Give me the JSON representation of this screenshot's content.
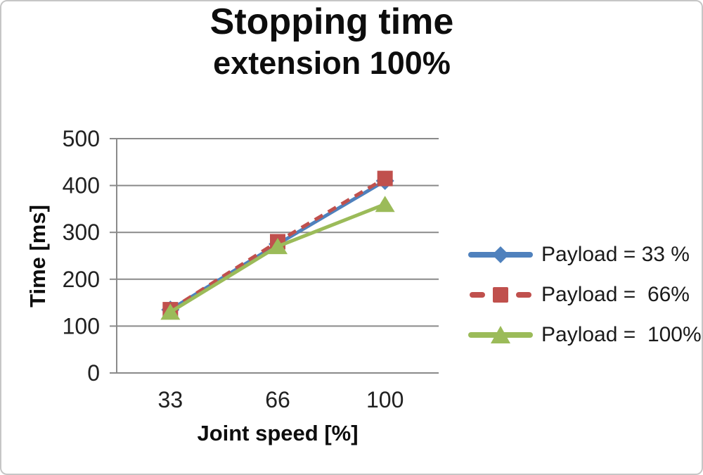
{
  "title": {
    "line1": "Stopping time",
    "line2": "extension 100%"
  },
  "chart_data": {
    "type": "line",
    "categories": [
      "33",
      "66",
      "100"
    ],
    "series": [
      {
        "name": "Payload = 33 %",
        "values": [
          135,
          275,
          410
        ],
        "color": "#4F81BD",
        "marker": "diamond",
        "dash": "solid"
      },
      {
        "name": "Payload =  66%",
        "values": [
          135,
          280,
          415
        ],
        "color": "#C0504D",
        "marker": "square",
        "dash": "dashed"
      },
      {
        "name": "Payload =  100%",
        "values": [
          130,
          270,
          360
        ],
        "color": "#9BBB59",
        "marker": "triangle",
        "dash": "solid"
      }
    ],
    "xlabel": "Joint speed [%]",
    "ylabel": "Time [ms]",
    "ylim": [
      0,
      500
    ],
    "y_ticks": [
      0,
      100,
      200,
      300,
      400,
      500
    ],
    "grid": "horizontal-major",
    "legend_position": "right",
    "gridline_color": "#8a8a8a",
    "axis_color": "#8a8a8a",
    "text_color": "#212121"
  }
}
